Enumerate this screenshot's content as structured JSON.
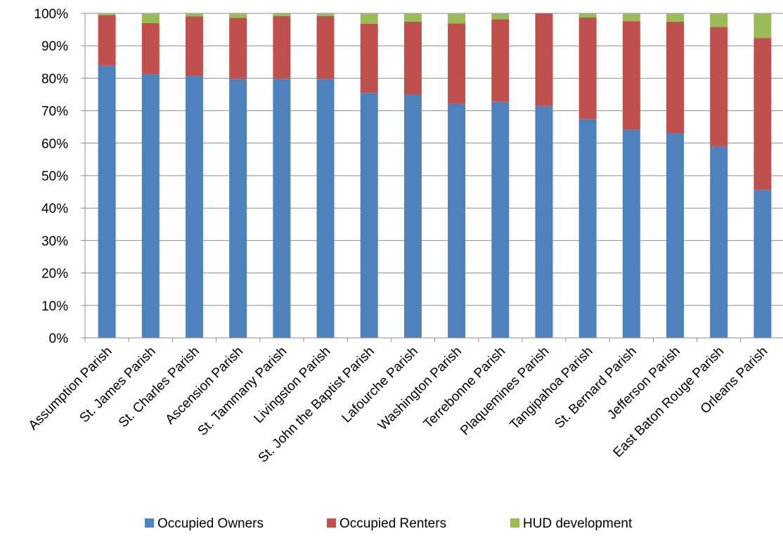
{
  "chart_data": {
    "type": "bar",
    "stacked": true,
    "percent": true,
    "categories": [
      "Assumption Parish",
      "St. James Parish",
      "St. Charles Parish",
      "Ascension Parish",
      "St. Tammany Parish",
      "Livingston Parish",
      "St. John the Baptist Parish",
      "Lafourche Parish",
      "Washington Parish",
      "Terrebonne Parish",
      "Plaquemines Parish",
      "Tangipahoa Parish",
      "St. Bernard Parish",
      "Jefferson Parish",
      "East Baton Rouge Parish",
      "Orleans Parish"
    ],
    "series": [
      {
        "name": "Occupied Owners",
        "color": "#4F81BD",
        "values": [
          84,
          81.3,
          80.7,
          79.8,
          79.8,
          79.8,
          75.5,
          75,
          72.2,
          72.8,
          71.5,
          67.5,
          64.2,
          63,
          59,
          45.6
        ]
      },
      {
        "name": "Occupied Renters",
        "color": "#C0504D",
        "values": [
          15.5,
          15.7,
          18.4,
          18.8,
          19.4,
          19.4,
          21.3,
          22.4,
          24.7,
          25.4,
          28.5,
          31.2,
          33.4,
          34.4,
          36.8,
          46.8
        ]
      },
      {
        "name": "HUD development",
        "color": "#9BBB59",
        "values": [
          0.5,
          3,
          0.9,
          1.4,
          0.8,
          0.8,
          3.2,
          2.6,
          3.1,
          1.8,
          0,
          1.3,
          2.4,
          2.6,
          4.2,
          7.6
        ]
      }
    ],
    "yticks": [
      "0%",
      "10%",
      "20%",
      "30%",
      "40%",
      "50%",
      "60%",
      "70%",
      "80%",
      "90%",
      "100%"
    ],
    "ylim": [
      0,
      100
    ],
    "grid": true,
    "legend": "bottom",
    "title": "",
    "xlabel": "",
    "ylabel": ""
  }
}
